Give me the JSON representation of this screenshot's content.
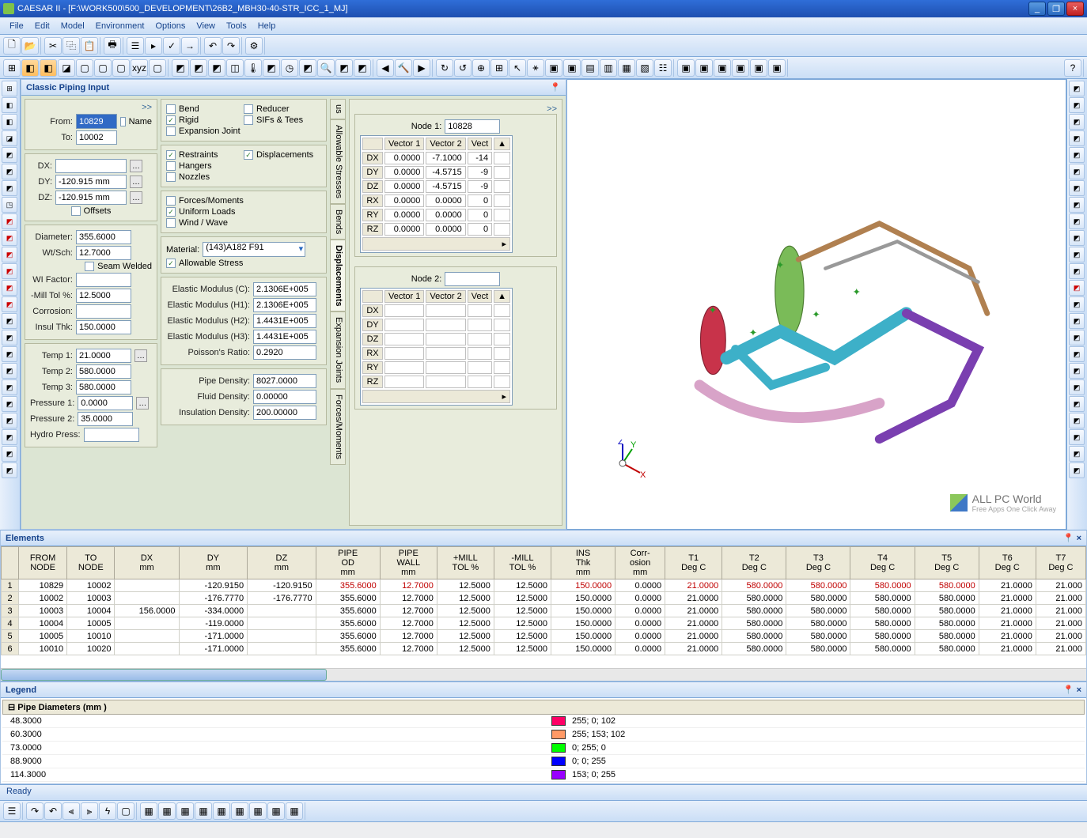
{
  "title": "CAESAR II - [F:\\WORK500\\500_DEVELOPMENT\\26B2_MBH30-40-STR_ICC_1_MJ]",
  "menu": [
    "File",
    "Edit",
    "Model",
    "Environment",
    "Options",
    "View",
    "Tools",
    "Help"
  ],
  "panels": {
    "classic": "Classic Piping Input",
    "elements": "Elements",
    "legend": "Legend"
  },
  "node_from": "10829",
  "node_to": "10002",
  "name_cb": false,
  "dx": "",
  "dy": "-120.915 mm",
  "dz": "-120.915 mm",
  "offsets": false,
  "diameter": "355.6000",
  "wtsch": "12.7000",
  "seam_welded": false,
  "wi_factor": "",
  "mill_tol": "12.5000",
  "corrosion": "",
  "insul_thk": "150.0000",
  "temp1": "21.0000",
  "temp2": "580.0000",
  "temp3": "580.0000",
  "pressure1": "0.0000",
  "pressure2": "35.0000",
  "hydro": "",
  "cb": {
    "bend": false,
    "reducer": false,
    "rigid": true,
    "sifs": false,
    "exp_joint": false,
    "restraints": true,
    "displacements": true,
    "hangers": false,
    "nozzles": false,
    "forces": false,
    "uniform": true,
    "wind": false,
    "allowable": true
  },
  "material": "(143)A182 F91",
  "elastic_c": "2.1306E+005",
  "elastic_h1": "2.1306E+005",
  "elastic_h2": "1.4431E+005",
  "elastic_h3": "1.4431E+005",
  "poisson": "0.2920",
  "pipe_density": "8027.0000",
  "fluid_density": "0.00000",
  "insul_density": "200.00000",
  "vtabs": [
    "us",
    "Allowable Stresses",
    "Bends",
    "Displacements",
    "Expansion Joints",
    "Forces/Moments"
  ],
  "vtab_active": 3,
  "disp": {
    "node1": "10828",
    "cols": [
      "Vector 1",
      "Vector 2",
      "Vect"
    ],
    "rows1": [
      [
        "DX",
        "0.0000",
        "-7.1000",
        "-14"
      ],
      [
        "DY",
        "0.0000",
        "-4.5715",
        "-9"
      ],
      [
        "DZ",
        "0.0000",
        "-4.5715",
        "-9"
      ],
      [
        "RX",
        "0.0000",
        "0.0000",
        "0"
      ],
      [
        "RY",
        "0.0000",
        "0.0000",
        "0"
      ],
      [
        "RZ",
        "0.0000",
        "0.0000",
        "0"
      ]
    ],
    "node2": "",
    "rows2": [
      [
        "DX",
        "",
        "",
        ""
      ],
      [
        "DY",
        "",
        "",
        ""
      ],
      [
        "DZ",
        "",
        "",
        ""
      ],
      [
        "RX",
        "",
        "",
        ""
      ],
      [
        "RY",
        "",
        "",
        ""
      ],
      [
        "RZ",
        "",
        "",
        ""
      ]
    ]
  },
  "grid": {
    "headers": [
      "",
      "FROM\nNODE",
      "TO\nNODE",
      "DX\nmm",
      "DY\nmm",
      "DZ\nmm",
      "PIPE\nOD\nmm",
      "PIPE\nWALL\nmm",
      "+MILL\nTOL %",
      "-MILL\nTOL %",
      "INS\nThk\nmm",
      "Corr-\nosion\nmm",
      "T1\nDeg C",
      "T2\nDeg C",
      "T3\nDeg C",
      "T4\nDeg C",
      "T5\nDeg C",
      "T6\nDeg C",
      "T7\nDeg C"
    ],
    "red_cols": [
      6,
      7,
      10,
      12,
      13,
      14,
      15,
      16
    ],
    "rows": [
      [
        "1",
        "10829",
        "10002",
        "",
        "-120.9150",
        "-120.9150",
        "355.6000",
        "12.7000",
        "12.5000",
        "12.5000",
        "150.0000",
        "0.0000",
        "21.0000",
        "580.0000",
        "580.0000",
        "580.0000",
        "580.0000",
        "21.0000",
        "21.000"
      ],
      [
        "2",
        "10002",
        "10003",
        "",
        "-176.7770",
        "-176.7770",
        "355.6000",
        "12.7000",
        "12.5000",
        "12.5000",
        "150.0000",
        "0.0000",
        "21.0000",
        "580.0000",
        "580.0000",
        "580.0000",
        "580.0000",
        "21.0000",
        "21.000"
      ],
      [
        "3",
        "10003",
        "10004",
        "156.0000",
        "-334.0000",
        "",
        "355.6000",
        "12.7000",
        "12.5000",
        "12.5000",
        "150.0000",
        "0.0000",
        "21.0000",
        "580.0000",
        "580.0000",
        "580.0000",
        "580.0000",
        "21.0000",
        "21.000"
      ],
      [
        "4",
        "10004",
        "10005",
        "",
        "-119.0000",
        "",
        "355.6000",
        "12.7000",
        "12.5000",
        "12.5000",
        "150.0000",
        "0.0000",
        "21.0000",
        "580.0000",
        "580.0000",
        "580.0000",
        "580.0000",
        "21.0000",
        "21.000"
      ],
      [
        "5",
        "10005",
        "10010",
        "",
        "-171.0000",
        "",
        "355.6000",
        "12.7000",
        "12.5000",
        "12.5000",
        "150.0000",
        "0.0000",
        "21.0000",
        "580.0000",
        "580.0000",
        "580.0000",
        "580.0000",
        "21.0000",
        "21.000"
      ],
      [
        "6",
        "10010",
        "10020",
        "",
        "-171.0000",
        "",
        "355.6000",
        "12.7000",
        "12.5000",
        "12.5000",
        "150.0000",
        "0.0000",
        "21.0000",
        "580.0000",
        "580.0000",
        "580.0000",
        "580.0000",
        "21.0000",
        "21.000"
      ]
    ]
  },
  "legend": {
    "section": "Pipe Diameters (mm )",
    "diams": [
      "48.3000",
      "60.3000",
      "73.0000",
      "88.9000",
      "114.3000"
    ],
    "colors": [
      {
        "hex": "#ff0066",
        "label": "255; 0; 102"
      },
      {
        "hex": "#ff9966",
        "label": "255; 153; 102"
      },
      {
        "hex": "#00ff00",
        "label": "0; 255; 0"
      },
      {
        "hex": "#0000ff",
        "label": "0; 0; 255"
      },
      {
        "hex": "#9900ff",
        "label": "153; 0; 255"
      }
    ]
  },
  "watermark": {
    "title": "ALL PC World",
    "sub": "Free Apps One Click Away"
  },
  "status": "Ready",
  "piping": {
    "colors": {
      "red": "#c8334a",
      "green": "#7abb58",
      "cyan": "#3db0c8",
      "pink": "#d8a3c8",
      "purple": "#7a3fb0",
      "brown": "#b08050",
      "grey": "#999999",
      "star": "#2a9a2a"
    },
    "axis": {
      "x": "#c00000",
      "y": "#00a000",
      "z": "#0000c0"
    }
  }
}
